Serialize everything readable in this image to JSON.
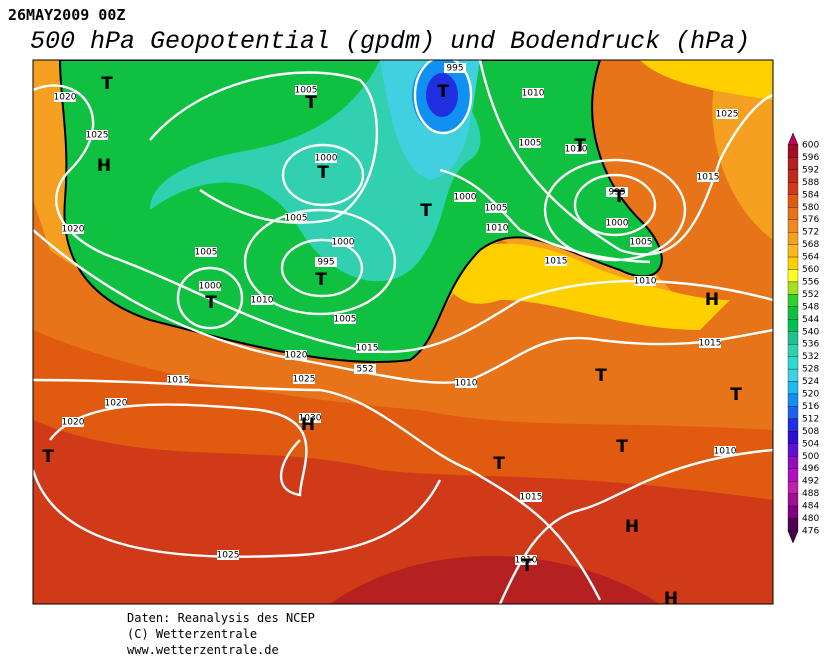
{
  "header": {
    "date": "26MAY2009 00Z",
    "title": "500 hPa Geopotential (gpdm) und Bodendruck (hPa)"
  },
  "colorbar": {
    "labels": [
      600,
      596,
      592,
      588,
      584,
      580,
      576,
      572,
      568,
      564,
      560,
      556,
      552,
      548,
      544,
      540,
      536,
      532,
      528,
      524,
      520,
      516,
      512,
      508,
      504,
      500,
      496,
      492,
      488,
      484,
      480,
      476
    ]
  },
  "map": {
    "isobar_labels": [
      "1020",
      "1025",
      "1005",
      "1000",
      "1005",
      "995",
      "1010",
      "1005",
      "1010",
      "995",
      "1000",
      "1005",
      "1000",
      "1005",
      "1010",
      "1000",
      "995",
      "1005",
      "1000",
      "1010",
      "1005",
      "1015",
      "1020",
      "1025",
      "1015",
      "1020",
      "1020",
      "1030",
      "1010",
      "1015",
      "1010",
      "1015",
      "1015",
      "1025",
      "1020",
      "1010",
      "1015",
      "1025",
      "1010",
      "552"
    ],
    "centers": [
      "T",
      "T",
      "H",
      "T",
      "T",
      "T",
      "T",
      "T",
      "T",
      "T",
      "H",
      "T",
      "T",
      "H",
      "T",
      "T",
      "T",
      "H",
      "T",
      "H"
    ]
  },
  "footer": {
    "lines": [
      "Daten: Reanalysis des NCEP",
      "(C) Wetterzentrale",
      "www.wetterzentrale.de"
    ]
  }
}
